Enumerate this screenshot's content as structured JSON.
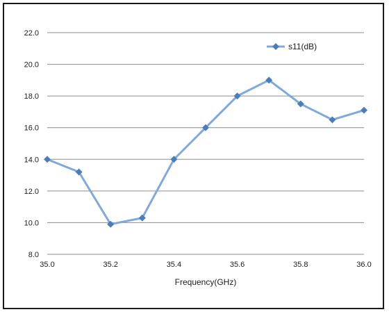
{
  "chart_data": {
    "type": "line",
    "title": "",
    "xlabel": "Frequency(GHz)",
    "ylabel": "",
    "xlim": [
      35.0,
      36.0
    ],
    "ylim": [
      8.0,
      22.0
    ],
    "x_ticks": [
      "35.0",
      "35.2",
      "35.4",
      "35.6",
      "35.8",
      "36.0"
    ],
    "y_ticks": [
      "8.0",
      "10.0",
      "12.0",
      "14.0",
      "16.0",
      "18.0",
      "20.0",
      "22.0"
    ],
    "grid": "horizontal",
    "legend_position": "top-right",
    "x": [
      35.0,
      35.1,
      35.2,
      35.3,
      35.4,
      35.5,
      35.6,
      35.7,
      35.8,
      35.9,
      36.0
    ],
    "series": [
      {
        "name": "s11(dB)",
        "color": "#7FA8DC",
        "marker_color": "#4A7EBB",
        "marker": "diamond",
        "values": [
          14.0,
          13.2,
          9.9,
          10.3,
          14.0,
          16.0,
          18.0,
          19.0,
          17.5,
          16.5,
          17.1
        ]
      }
    ]
  }
}
